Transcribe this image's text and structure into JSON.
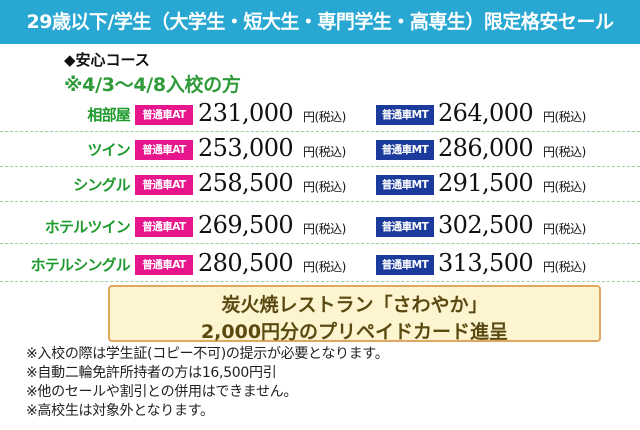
{
  "header": {
    "title": "29歳以下/学生（大学生・短大生・専門学生・高専生）限定格安セール"
  },
  "course": {
    "name": "◆安心コース",
    "period": "※4/3～4/8入校の方"
  },
  "badges": {
    "at": "普通車AT",
    "mt": "普通車MT"
  },
  "tax_suffix": "円(税込)",
  "rows": [
    {
      "label": "相部屋",
      "at_price": "231,000",
      "mt_price": "264,000"
    },
    {
      "label": "ツイン",
      "at_price": "253,000",
      "mt_price": "286,000"
    },
    {
      "label": "シングル",
      "at_price": "258,500",
      "mt_price": "291,500"
    },
    {
      "label": "ホテルツイン",
      "at_price": "269,500",
      "mt_price": "302,500"
    },
    {
      "label": "ホテルシングル",
      "at_price": "280,500",
      "mt_price": "313,500"
    }
  ],
  "promo": {
    "line1": "炭火焼レストラン「さわやか」",
    "line2": "2,000円分のプリペイドカード進呈"
  },
  "notes": [
    "※入校の際は学生証(コピー不可)の提示が必要となります。",
    "※自動二輪免許所持者の方は16,500円引",
    "※他のセールや割引との併用はできません。",
    "※高校生は対象外となります。"
  ],
  "colors": {
    "header_bg": "#27a7d2",
    "label_green": "#1e9a2c",
    "at_badge": "#e8168d",
    "mt_badge": "#1a3b9c",
    "promo_bg": "#fdf4d0",
    "promo_border": "#e0a760"
  }
}
